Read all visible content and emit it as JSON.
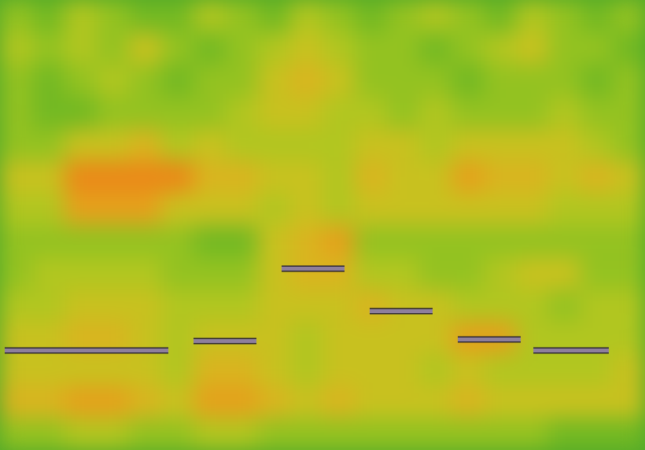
{
  "chart_data": {
    "type": "heatmap",
    "xlim": [
      0,
      820
    ],
    "ylim": [
      0,
      572
    ],
    "tick_labels": false,
    "grid": false,
    "cell_range": [
      0,
      10
    ],
    "cells": [
      [
        4,
        3,
        5,
        4,
        3,
        3,
        5,
        4,
        3,
        5,
        4,
        3,
        4,
        5,
        4,
        3,
        5,
        4,
        3,
        4
      ],
      [
        5,
        4,
        5,
        4,
        6,
        4,
        3,
        4,
        5,
        6,
        5,
        4,
        4,
        3,
        4,
        5,
        6,
        4,
        4,
        3
      ],
      [
        4,
        3,
        4,
        5,
        4,
        3,
        4,
        4,
        6,
        7,
        6,
        4,
        4,
        4,
        3,
        4,
        4,
        4,
        3,
        4
      ],
      [
        4,
        3,
        3,
        4,
        4,
        4,
        4,
        5,
        6,
        6,
        5,
        5,
        4,
        5,
        4,
        4,
        4,
        5,
        4,
        4
      ],
      [
        4,
        4,
        6,
        6,
        7,
        5,
        6,
        5,
        5,
        5,
        5,
        6,
        6,
        5,
        6,
        6,
        6,
        6,
        5,
        4
      ],
      [
        6,
        6,
        9,
        9,
        9,
        9,
        7,
        7,
        6,
        6,
        5,
        7,
        6,
        6,
        8,
        7,
        7,
        6,
        7,
        6
      ],
      [
        5,
        5,
        8,
        8,
        8,
        6,
        6,
        6,
        5,
        6,
        5,
        6,
        6,
        6,
        6,
        6,
        6,
        5,
        5,
        5
      ],
      [
        4,
        4,
        4,
        4,
        4,
        4,
        3,
        3,
        6,
        7,
        8,
        4,
        4,
        4,
        4,
        4,
        4,
        4,
        4,
        4
      ],
      [
        4,
        5,
        5,
        5,
        5,
        4,
        4,
        4,
        6,
        7,
        7,
        5,
        5,
        4,
        4,
        5,
        6,
        6,
        4,
        4
      ],
      [
        5,
        5,
        6,
        6,
        6,
        5,
        5,
        5,
        6,
        6,
        6,
        7,
        6,
        6,
        5,
        5,
        5,
        4,
        5,
        5
      ],
      [
        6,
        6,
        7,
        7,
        6,
        5,
        6,
        6,
        6,
        5,
        6,
        6,
        6,
        6,
        8,
        8,
        5,
        5,
        5,
        5
      ],
      [
        6,
        6,
        6,
        6,
        6,
        5,
        7,
        7,
        6,
        5,
        6,
        6,
        6,
        5,
        6,
        5,
        5,
        5,
        5,
        6
      ],
      [
        7,
        7,
        8,
        8,
        7,
        6,
        8,
        8,
        7,
        6,
        7,
        6,
        6,
        6,
        7,
        6,
        6,
        6,
        6,
        6
      ],
      [
        4,
        4,
        5,
        5,
        4,
        4,
        5,
        5,
        4,
        4,
        4,
        4,
        4,
        4,
        4,
        4,
        4,
        3,
        3,
        3
      ]
    ],
    "notes": [
      {
        "start": 6,
        "end": 214,
        "pitch": 127
      },
      {
        "start": 246,
        "end": 326,
        "pitch": 139
      },
      {
        "start": 358,
        "end": 438,
        "pitch": 231
      },
      {
        "start": 470,
        "end": 550,
        "pitch": 177
      },
      {
        "start": 582,
        "end": 662,
        "pitch": 141
      },
      {
        "start": 678,
        "end": 774,
        "pitch": 127
      }
    ],
    "color": "#8e7f9c"
  }
}
